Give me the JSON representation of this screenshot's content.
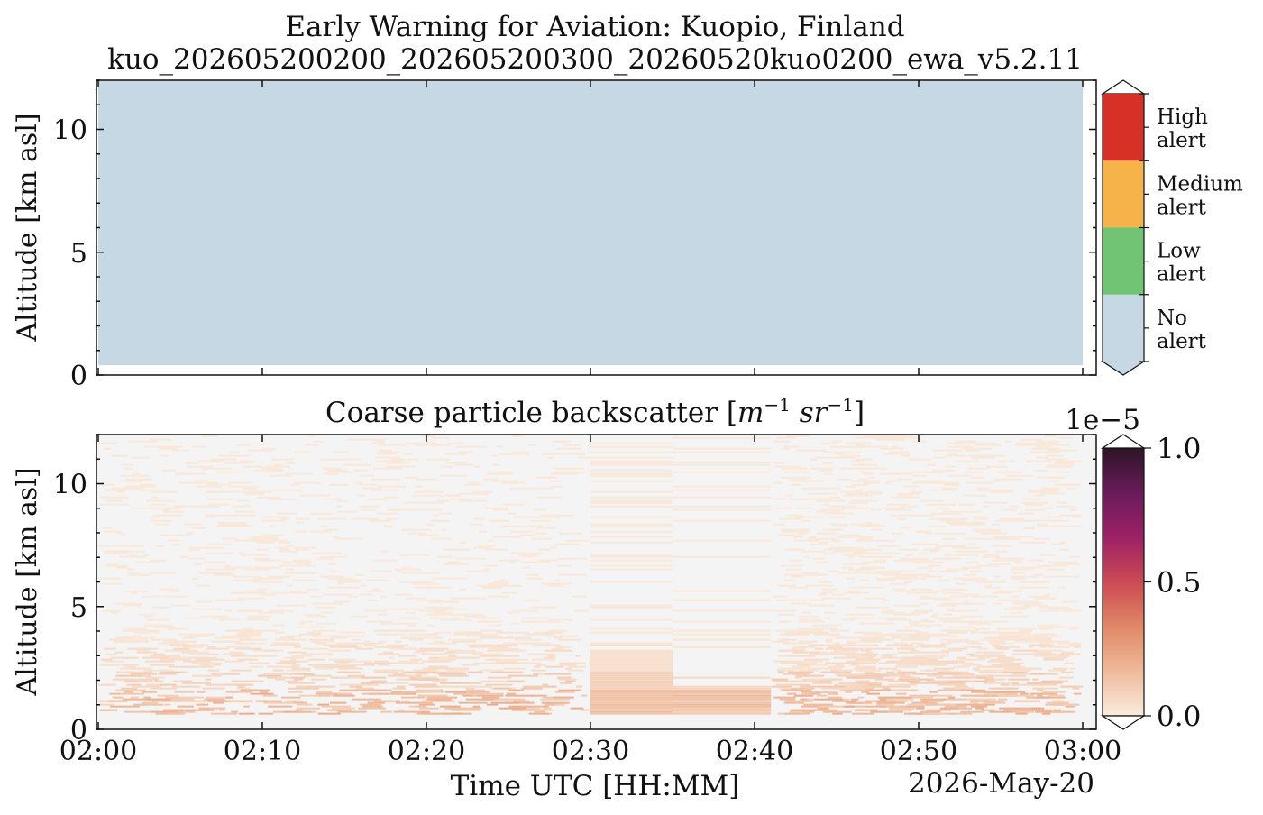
{
  "figure": {
    "title": "Early Warning for Aviation: Kuopio, Finland",
    "subtitle": "kuo_202605200200_202605200300_20260520kuo0200_ewa_v5.2.11",
    "xlabel": "Time UTC [HH:MM]",
    "date_label": "2026-May-20"
  },
  "chart_data": [
    {
      "type": "heatmap",
      "name": "alert-level",
      "ylabel": "Altitude [km asl]",
      "x_range": [
        "02:00",
        "03:00"
      ],
      "ylim": [
        0,
        12
      ],
      "x_ticks": [
        "02:00",
        "02:10",
        "02:20",
        "02:30",
        "02:40",
        "02:50",
        "03:00"
      ],
      "y_ticks": [
        0,
        5,
        10
      ],
      "cells": [
        {
          "x_start": "02:00",
          "x_end": "03:00",
          "y_start": 0.4,
          "y_end": 12,
          "level": "No alert"
        }
      ],
      "colorbar": {
        "levels": [
          {
            "label": "No\nalert",
            "color": "#c5d8e3"
          },
          {
            "label": "Low\nalert",
            "color": "#70c473"
          },
          {
            "label": "Medium\nalert",
            "color": "#f5b349"
          },
          {
            "label": "High\nalert",
            "color": "#d73027"
          }
        ]
      }
    },
    {
      "type": "heatmap",
      "name": "coarse-backscatter",
      "title": "Coarse particle backscatter [m⁻¹ sr⁻¹]",
      "ylabel": "Altitude [km asl]",
      "x_range": [
        "02:00",
        "03:00"
      ],
      "ylim": [
        0,
        12
      ],
      "x_ticks": [
        "02:00",
        "02:10",
        "02:20",
        "02:30",
        "02:40",
        "02:50",
        "03:00"
      ],
      "y_ticks": [
        0,
        5,
        10
      ],
      "background_color": "#f4f4f4",
      "units_scale": "1e−5",
      "colorbar": {
        "range": [
          0.0,
          1.0
        ],
        "ticks": [
          "0.0",
          "0.5",
          "1.0"
        ],
        "colors": [
          "#faebdd",
          "#eeb99a",
          "#e18968",
          "#cb4a54",
          "#9c2066",
          "#6a1b5a",
          "#2d1526"
        ]
      },
      "bands": [
        {
          "alt_start": 0.6,
          "alt_end": 1.6,
          "intensity": 0.14
        },
        {
          "alt_start": 1.6,
          "alt_end": 2.3,
          "intensity": 0.08
        },
        {
          "alt_start": 2.3,
          "alt_end": 3.4,
          "intensity": 0.04
        },
        {
          "alt_start": 3.4,
          "alt_end": 4.0,
          "intensity": 0.02
        },
        {
          "alt_start": 4.0,
          "alt_end": 12.0,
          "intensity": 0.01
        }
      ],
      "segments": [
        {
          "t_start": "02:00",
          "t_end": "02:30",
          "kind": "noisy"
        },
        {
          "t_start": "02:30",
          "t_end": "02:35",
          "kind": "smooth"
        },
        {
          "t_start": "02:35",
          "t_end": "02:41",
          "kind": "sparse"
        },
        {
          "t_start": "02:41",
          "t_end": "03:00",
          "kind": "noisy"
        }
      ]
    }
  ]
}
